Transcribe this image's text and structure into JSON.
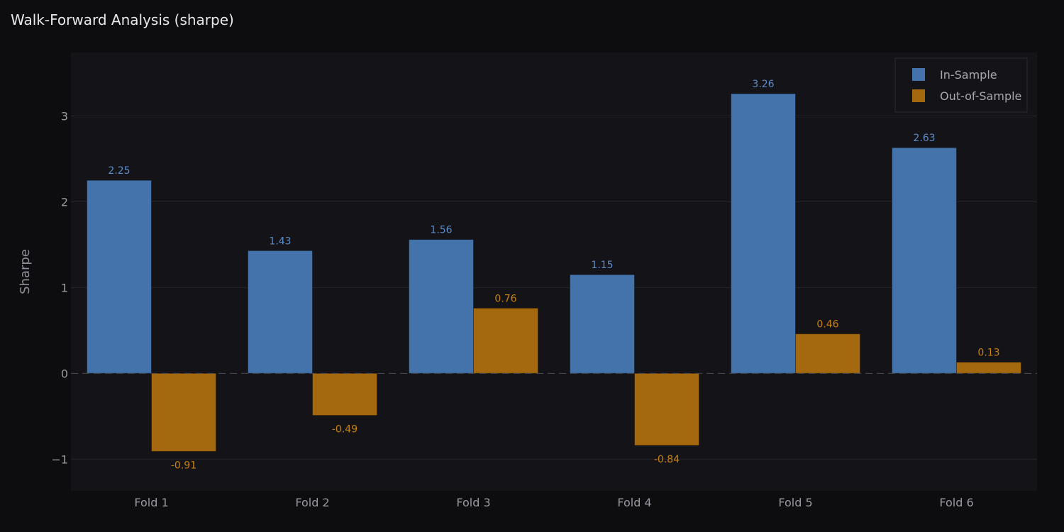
{
  "chart_data": {
    "type": "bar",
    "title": "Walk-Forward Analysis (sharpe)",
    "xlabel": "",
    "ylabel": "Sharpe",
    "categories": [
      "Fold 1",
      "Fold 2",
      "Fold 3",
      "Fold 4",
      "Fold 5",
      "Fold 6"
    ],
    "series": [
      {
        "name": "In-Sample",
        "color": "#4472aa",
        "values": [
          2.25,
          1.43,
          1.56,
          1.15,
          3.26,
          2.63
        ],
        "labels": [
          "2.25",
          "1.43",
          "1.56",
          "1.15",
          "3.26",
          "2.63"
        ]
      },
      {
        "name": "Out-of-Sample",
        "color": "#a4690e",
        "values": [
          -0.91,
          -0.49,
          0.76,
          -0.84,
          0.46,
          0.13
        ],
        "labels": [
          "-0.91",
          "-0.49",
          "0.76",
          "-0.84",
          "0.46",
          "0.13"
        ]
      }
    ],
    "ylim": [
      -1.37,
      3.74
    ],
    "yticks": [
      -1,
      0,
      1,
      2,
      3
    ],
    "ytick_labels": [
      "−1",
      "0",
      "1",
      "2",
      "3"
    ],
    "grid": true,
    "legend_position": "top-right",
    "colors": {
      "background": "#0d0d10",
      "plot_background": "#131318",
      "grid": "#25252b",
      "zero_line": "#4a4a52"
    }
  }
}
